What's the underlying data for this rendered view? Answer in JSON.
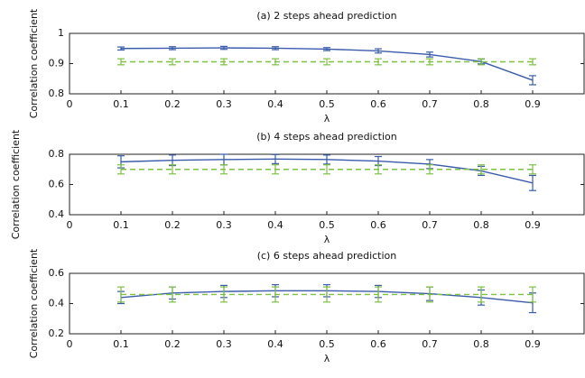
{
  "chart_data": [
    {
      "type": "line",
      "title": "(a) 2 steps ahead prediction",
      "xlabel": "λ",
      "ylabel": "Correlation coefficient",
      "x": [
        0.1,
        0.2,
        0.3,
        0.4,
        0.5,
        0.6,
        0.7,
        0.8,
        0.9
      ],
      "xlim": [
        0,
        1
      ],
      "xticks": [
        0,
        0.1,
        0.2,
        0.3,
        0.4,
        0.5,
        0.6,
        0.7,
        0.8,
        0.9
      ],
      "ylim": [
        0.8,
        1
      ],
      "yticks": [
        0.8,
        0.9,
        1
      ],
      "series": [
        {
          "color": "#3a5bab",
          "dashed": false,
          "values": [
            0.95,
            0.951,
            0.952,
            0.951,
            0.948,
            0.942,
            0.93,
            0.907,
            0.845
          ],
          "errors": [
            0.005,
            0.005,
            0.005,
            0.005,
            0.005,
            0.007,
            0.008,
            0.008,
            0.015
          ]
        },
        {
          "color": "#7dc142",
          "dashed": true,
          "values": [
            0.906,
            0.906,
            0.906,
            0.906,
            0.906,
            0.906,
            0.906,
            0.906,
            0.906
          ],
          "errors": [
            0.01,
            0.01,
            0.01,
            0.01,
            0.01,
            0.01,
            0.01,
            0.01,
            0.01
          ]
        }
      ]
    },
    {
      "type": "line",
      "title": "(b) 4 steps ahead prediction",
      "xlabel": "λ",
      "ylabel": "Correlation coefficient",
      "x": [
        0.1,
        0.2,
        0.3,
        0.4,
        0.5,
        0.6,
        0.7,
        0.8,
        0.9
      ],
      "xlim": [
        0,
        1
      ],
      "xticks": [
        0,
        0.1,
        0.2,
        0.3,
        0.4,
        0.5,
        0.6,
        0.7,
        0.8,
        0.9
      ],
      "ylim": [
        0.4,
        0.8
      ],
      "yticks": [
        0.4,
        0.6,
        0.8
      ],
      "series": [
        {
          "color": "#3a5bab",
          "dashed": false,
          "values": [
            0.75,
            0.76,
            0.765,
            0.768,
            0.765,
            0.755,
            0.735,
            0.69,
            0.61
          ],
          "errors": [
            0.04,
            0.035,
            0.035,
            0.03,
            0.03,
            0.03,
            0.03,
            0.03,
            0.05
          ]
        },
        {
          "color": "#7dc142",
          "dashed": true,
          "values": [
            0.7,
            0.7,
            0.7,
            0.7,
            0.7,
            0.7,
            0.7,
            0.7,
            0.7
          ],
          "errors": [
            0.03,
            0.03,
            0.03,
            0.03,
            0.03,
            0.03,
            0.03,
            0.03,
            0.03
          ]
        }
      ]
    },
    {
      "type": "line",
      "title": "(c) 6 steps ahead prediction",
      "xlabel": "λ",
      "ylabel": "Correlation coefficient",
      "x": [
        0.1,
        0.2,
        0.3,
        0.4,
        0.5,
        0.6,
        0.7,
        0.8,
        0.9
      ],
      "xlim": [
        0,
        1
      ],
      "xticks": [
        0,
        0.1,
        0.2,
        0.3,
        0.4,
        0.5,
        0.6,
        0.7,
        0.8,
        0.9
      ],
      "ylim": [
        0.2,
        0.6
      ],
      "yticks": [
        0.2,
        0.4,
        0.6
      ],
      "series": [
        {
          "color": "#3a5bab",
          "dashed": false,
          "values": [
            0.44,
            0.47,
            0.48,
            0.485,
            0.485,
            0.48,
            0.465,
            0.44,
            0.405
          ],
          "errors": [
            0.04,
            0.04,
            0.04,
            0.04,
            0.04,
            0.04,
            0.045,
            0.05,
            0.065
          ]
        },
        {
          "color": "#7dc142",
          "dashed": true,
          "values": [
            0.46,
            0.46,
            0.46,
            0.46,
            0.46,
            0.46,
            0.46,
            0.46,
            0.46
          ],
          "errors": [
            0.05,
            0.05,
            0.05,
            0.05,
            0.05,
            0.05,
            0.05,
            0.05,
            0.05
          ]
        }
      ]
    }
  ]
}
